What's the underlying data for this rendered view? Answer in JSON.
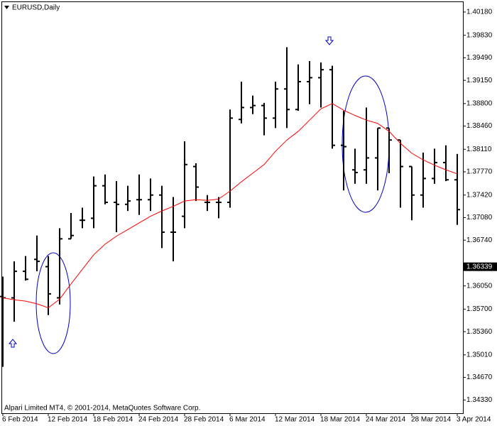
{
  "chart_data": {
    "type": "ohlc",
    "title": "EURUSD,Daily",
    "footer": "Alpari Limited MT4, © 2001-2014, MetaQuotes Software Corp.",
    "categories": [
      "6 Feb 2014",
      null,
      null,
      null,
      "12 Feb 2014",
      null,
      null,
      null,
      "18 Feb 2014",
      null,
      null,
      null,
      "24 Feb 2014",
      null,
      null,
      null,
      "28 Feb 2014",
      null,
      null,
      null,
      "6 Mar 2014",
      null,
      null,
      null,
      "12 Mar 2014",
      null,
      null,
      null,
      "18 Mar 2014",
      null,
      null,
      null,
      "24 Mar 2014",
      null,
      null,
      null,
      "28 Mar 2014",
      null,
      null,
      null,
      "3 Apr 2014"
    ],
    "open": [
      1.3589,
      1.3587,
      1.3627,
      1.3645,
      1.3634,
      1.3587,
      1.3676,
      1.3704,
      1.3707,
      1.3756,
      1.3731,
      1.3728,
      1.3735,
      1.3735,
      1.3742,
      1.3686,
      1.371,
      1.3785,
      1.3731,
      1.3731,
      1.3731,
      1.3856,
      1.3874,
      1.3877,
      1.3858,
      1.3902,
      1.3871,
      1.3913,
      1.3919,
      1.3931,
      1.3817,
      1.378,
      1.378,
      1.3798,
      1.3843,
      1.3825,
      1.3785,
      1.3742,
      1.3767,
      1.3791,
      1.3765
    ],
    "high": [
      1.3619,
      1.3642,
      1.365,
      1.3681,
      1.365,
      1.3692,
      1.3715,
      1.3723,
      1.377,
      1.3773,
      1.3763,
      1.3756,
      1.3773,
      1.3767,
      1.3756,
      1.3739,
      1.3823,
      1.379,
      1.3742,
      1.3739,
      1.3871,
      1.3913,
      1.3892,
      1.3881,
      1.3913,
      1.3965,
      1.3939,
      1.3944,
      1.3942,
      1.3937,
      1.3869,
      1.3812,
      1.3874,
      1.3843,
      1.3843,
      1.3825,
      1.3785,
      1.3806,
      1.3812,
      1.3817,
      1.3804
    ],
    "low": [
      1.3483,
      1.3551,
      1.3613,
      1.3627,
      1.3561,
      1.3577,
      1.3676,
      1.3692,
      1.3692,
      1.3728,
      1.3686,
      1.3718,
      1.3712,
      1.3718,
      1.3662,
      1.3642,
      1.3692,
      1.3733,
      1.3718,
      1.3707,
      1.3723,
      1.385,
      1.3864,
      1.3832,
      1.3843,
      1.3843,
      1.3869,
      1.3879,
      1.3874,
      1.3812,
      1.3749,
      1.3759,
      1.3759,
      1.3749,
      1.3775,
      1.3723,
      1.3704,
      1.3723,
      1.3759,
      1.3763,
      1.3697
    ],
    "close": [
      1.3587,
      1.3627,
      1.3615,
      1.3642,
      1.3593,
      1.3676,
      1.3681,
      1.3704,
      1.3756,
      1.3731,
      1.3728,
      1.3733,
      1.3735,
      1.3742,
      1.3686,
      1.3686,
      1.3788,
      1.3754,
      1.3731,
      1.3731,
      1.3858,
      1.3874,
      1.3877,
      1.3858,
      1.3902,
      1.3871,
      1.3913,
      1.3919,
      1.3931,
      1.3817,
      1.3815,
      1.3776,
      1.3798,
      1.3843,
      1.3825,
      1.3785,
      1.3742,
      1.3767,
      1.3791,
      1.3765,
      1.372
    ],
    "color": "#000000",
    "moving_average": {
      "color": "#ff0000",
      "values": [
        1.3587,
        1.3584,
        1.3582,
        1.3578,
        1.3572,
        1.3585,
        1.3608,
        1.363,
        1.3652,
        1.3668,
        1.368,
        1.369,
        1.37,
        1.371,
        1.3718,
        1.3725,
        1.3733,
        1.3735,
        1.3734,
        1.3736,
        1.3748,
        1.3762,
        1.3775,
        1.3788,
        1.3808,
        1.3825,
        1.3838,
        1.3855,
        1.3872,
        1.388,
        1.387,
        1.3862,
        1.3855,
        1.385,
        1.3838,
        1.382,
        1.3805,
        1.3795,
        1.3787,
        1.378,
        1.3774
      ]
    },
    "ylim": [
      1.3413,
      1.4034
    ],
    "yticks": [
      {
        "value": 1.4018,
        "label": "1.40180"
      },
      {
        "value": 1.3983,
        "label": "1.39830"
      },
      {
        "value": 1.3949,
        "label": "1.39490"
      },
      {
        "value": 1.3915,
        "label": "1.39150"
      },
      {
        "value": 1.388,
        "label": "1.38800"
      },
      {
        "value": 1.3846,
        "label": "1.38460"
      },
      {
        "value": 1.3811,
        "label": "1.38110"
      },
      {
        "value": 1.3777,
        "label": "1.37770"
      },
      {
        "value": 1.3742,
        "label": "1.37420"
      },
      {
        "value": 1.3708,
        "label": "1.37080"
      },
      {
        "value": 1.3674,
        "label": "1.36740"
      },
      {
        "value": 1.3605,
        "label": "1.36050"
      },
      {
        "value": 1.357,
        "label": "1.35700"
      },
      {
        "value": 1.3536,
        "label": "1.35360"
      },
      {
        "value": 1.3501,
        "label": "1.35010"
      },
      {
        "value": 1.3467,
        "label": "1.34670"
      },
      {
        "value": 1.3433,
        "label": "1.34330"
      }
    ],
    "current_price": {
      "value": 1.36339,
      "label": "1.36339"
    }
  }
}
